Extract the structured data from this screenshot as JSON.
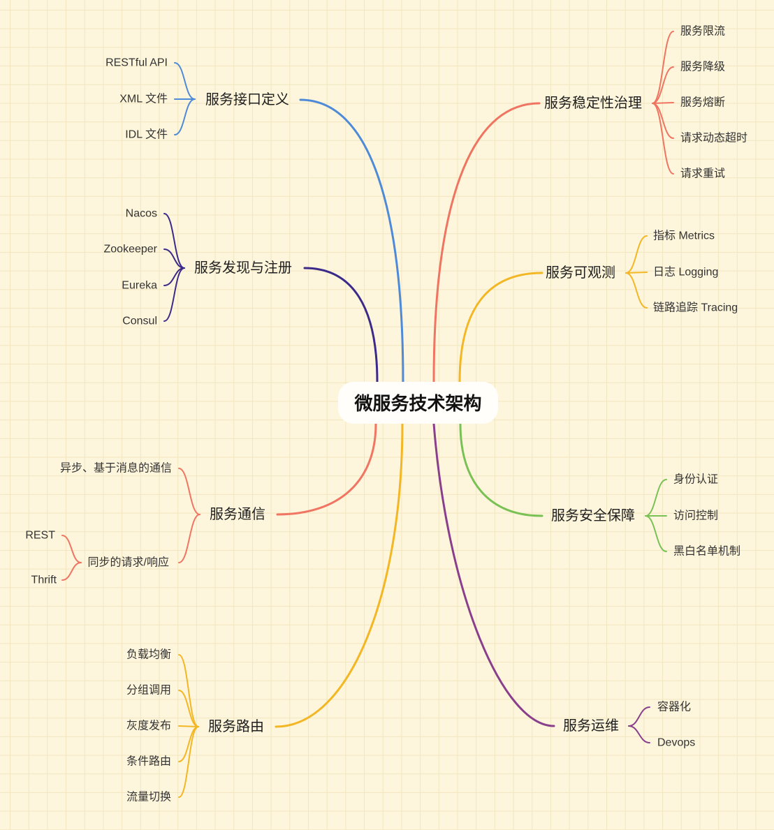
{
  "root": {
    "label": "微服务技术架构"
  },
  "branches": [
    {
      "label": "服务接口定义",
      "color": "#4e8ad8",
      "children": [
        {
          "label": "RESTful API"
        },
        {
          "label": "XML 文件"
        },
        {
          "label": "IDL 文件"
        }
      ]
    },
    {
      "label": "服务发现与注册",
      "color": "#3b2a8a",
      "children": [
        {
          "label": "Nacos"
        },
        {
          "label": "Zookeeper"
        },
        {
          "label": "Eureka"
        },
        {
          "label": "Consul"
        }
      ]
    },
    {
      "label": "服务通信",
      "color": "#f07562",
      "children": [
        {
          "label": "异步、基于消息的通信"
        },
        {
          "label": "同步的请求/响应",
          "children": [
            {
              "label": "REST"
            },
            {
              "label": "Thrift"
            }
          ]
        }
      ]
    },
    {
      "label": "服务路由",
      "color": "#f3b624",
      "children": [
        {
          "label": "负载均衡"
        },
        {
          "label": "分组调用"
        },
        {
          "label": "灰度发布"
        },
        {
          "label": "条件路由"
        },
        {
          "label": "流量切换"
        }
      ]
    },
    {
      "label": "服务稳定性治理",
      "color": "#ef7461",
      "children": [
        {
          "label": "服务限流"
        },
        {
          "label": "服务降级"
        },
        {
          "label": "服务熔断"
        },
        {
          "label": "请求动态超时"
        },
        {
          "label": "请求重试"
        }
      ]
    },
    {
      "label": "服务可观测",
      "color": "#f3b624",
      "children": [
        {
          "label": "指标 Metrics"
        },
        {
          "label": "日志 Logging"
        },
        {
          "label": "链路追踪 Tracing"
        }
      ]
    },
    {
      "label": "服务安全保障",
      "color": "#7ac155",
      "children": [
        {
          "label": "身份认证"
        },
        {
          "label": "访问控制"
        },
        {
          "label": "黑白名单机制"
        }
      ]
    },
    {
      "label": "服务运维",
      "color": "#8a3f8d",
      "children": [
        {
          "label": "容器化"
        },
        {
          "label": "Devops"
        }
      ]
    }
  ]
}
